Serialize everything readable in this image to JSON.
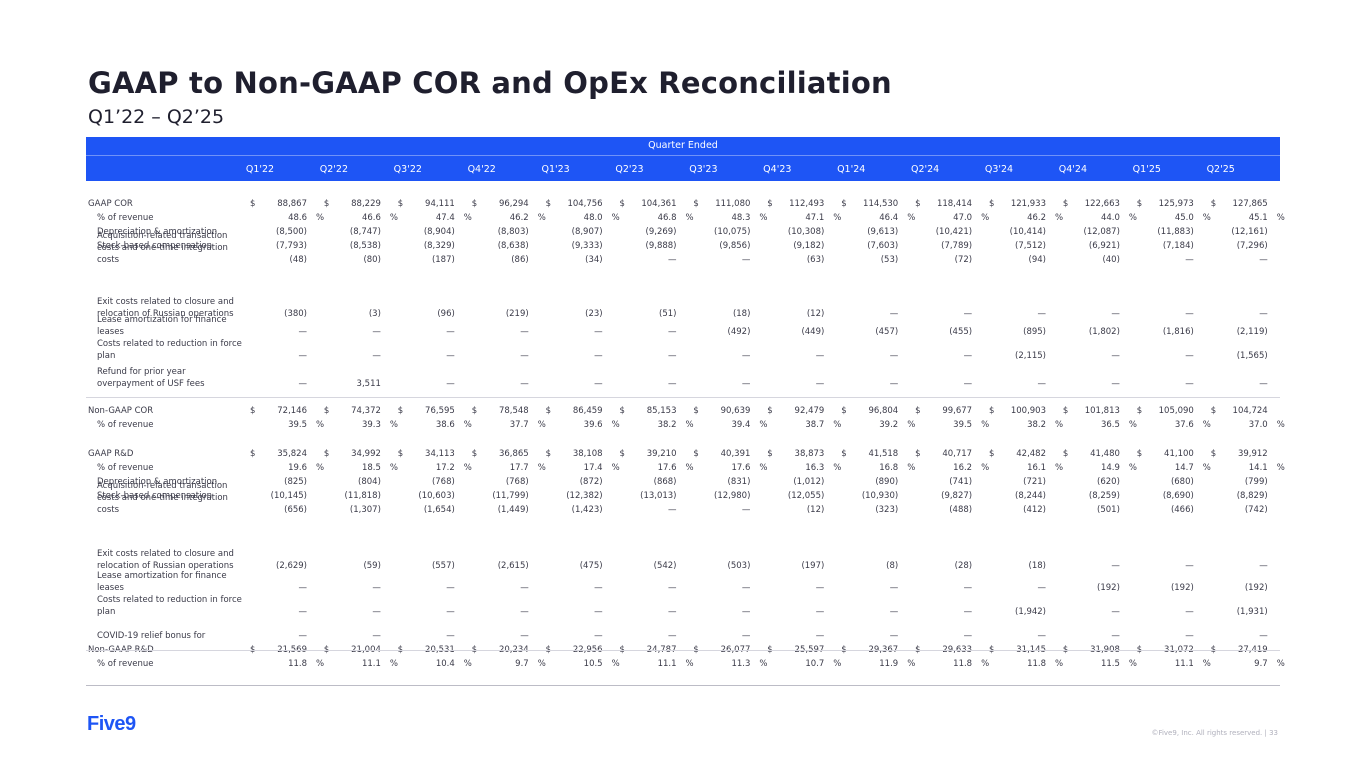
{
  "title": "GAAP to Non-GAAP COR and OpEx Reconciliation",
  "subtitle": "Q1’22 – Q2’25",
  "header_group": "Quarter Ended",
  "quarters": [
    "Q1'22",
    "Q2'22",
    "Q3'22",
    "Q4'22",
    "Q1'23",
    "Q2'23",
    "Q3'23",
    "Q4'23",
    "Q1'24",
    "Q2'24",
    "Q3'24",
    "Q4'24",
    "Q1'25",
    "Q2'25"
  ],
  "rows": [
    {
      "label": [
        "GAAP COR"
      ],
      "dollar": true,
      "values": [
        "88,867",
        "88,229",
        "94,111",
        "96,294",
        "104,756",
        "104,361",
        "111,080",
        "112,493",
        "114,530",
        "118,414",
        "121,933",
        "122,663",
        "125,973",
        "127,865"
      ]
    },
    {
      "label": [
        "% of revenue"
      ],
      "pct": true,
      "values": [
        "48.6",
        "46.6",
        "47.4",
        "46.2",
        "48.0",
        "46.8",
        "48.3",
        "47.1",
        "46.4",
        "47.0",
        "46.2",
        "44.0",
        "45.0",
        "45.1"
      ]
    },
    {
      "label": [
        "Depreciation & amortization"
      ],
      "values": [
        "(8,500)",
        "(8,747)",
        "(8,904)",
        "(8,803)",
        "(8,907)",
        "(9,269)",
        "(10,075)",
        "(10,308)",
        "(9,613)",
        "(10,421)",
        "(10,414)",
        "(12,087)",
        "(11,883)",
        "(12,161)"
      ]
    },
    {
      "label": [
        "Stock-based compensation"
      ],
      "values": [
        "(7,793)",
        "(8,538)",
        "(8,329)",
        "(8,638)",
        "(9,333)",
        "(9,888)",
        "(9,856)",
        "(9,182)",
        "(7,603)",
        "(7,789)",
        "(7,512)",
        "(6,921)",
        "(7,184)",
        "(7,296)"
      ]
    },
    {
      "label": [
        "Acquisition-related transaction",
        "costs and one-time integration",
        "costs"
      ],
      "values": [
        "(48)",
        "(80)",
        "(187)",
        "(86)",
        "(34)",
        "—",
        "—",
        "(63)",
        "(53)",
        "(72)",
        "(94)",
        "(40)",
        "—",
        "—"
      ]
    },
    {
      "label": [
        "Exit costs related to closure and",
        "relocation of Russian operations"
      ],
      "values": [
        "(380)",
        "(3)",
        "(96)",
        "(219)",
        "(23)",
        "(51)",
        "(18)",
        "(12)",
        "—",
        "—",
        "—",
        "—",
        "—",
        "—"
      ]
    },
    {
      "label": [
        "Lease amortization for finance",
        "leases"
      ],
      "values": [
        "—",
        "—",
        "—",
        "—",
        "—",
        "—",
        "(492)",
        "(449)",
        "(457)",
        "(455)",
        "(895)",
        "(1,802)",
        "(1,816)",
        "(2,119)"
      ]
    },
    {
      "label": [
        "Costs related to reduction in force",
        "plan"
      ],
      "values": [
        "—",
        "—",
        "—",
        "—",
        "—",
        "—",
        "—",
        "—",
        "—",
        "—",
        "(2,115)",
        "—",
        "—",
        "(1,565)"
      ]
    },
    {
      "label": [
        "Refund for prior year",
        "overpayment of USF fees"
      ],
      "values": [
        "—",
        "3,511",
        "—",
        "—",
        "—",
        "—",
        "—",
        "—",
        "—",
        "—",
        "—",
        "—",
        "—",
        "—"
      ]
    },
    {
      "label": [
        "Non-GAAP COR"
      ],
      "dollar": true,
      "values": [
        "72,146",
        "74,372",
        "76,595",
        "78,548",
        "86,459",
        "85,153",
        "90,639",
        "92,479",
        "96,804",
        "99,677",
        "100,903",
        "101,813",
        "105,090",
        "104,724"
      ]
    },
    {
      "label": [
        "% of revenue"
      ],
      "pct": true,
      "values": [
        "39.5",
        "39.3",
        "38.6",
        "37.7",
        "39.6",
        "38.2",
        "39.4",
        "38.7",
        "39.2",
        "39.5",
        "38.2",
        "36.5",
        "37.6",
        "37.0"
      ]
    },
    {
      "label": [
        "GAAP R&D"
      ],
      "dollar": true,
      "values": [
        "35,824",
        "34,992",
        "34,113",
        "36,865",
        "38,108",
        "39,210",
        "40,391",
        "38,873",
        "41,518",
        "40,717",
        "42,482",
        "41,480",
        "41,100",
        "39,912"
      ]
    },
    {
      "label": [
        "% of revenue"
      ],
      "pct": true,
      "values": [
        "19.6",
        "18.5",
        "17.2",
        "17.7",
        "17.4",
        "17.6",
        "17.6",
        "16.3",
        "16.8",
        "16.2",
        "16.1",
        "14.9",
        "14.7",
        "14.1"
      ]
    },
    {
      "label": [
        "Depreciation & amortization"
      ],
      "values": [
        "(825)",
        "(804)",
        "(768)",
        "(768)",
        "(872)",
        "(868)",
        "(831)",
        "(1,012)",
        "(890)",
        "(741)",
        "(721)",
        "(620)",
        "(680)",
        "(799)"
      ]
    },
    {
      "label": [
        "Stock-based compensation"
      ],
      "values": [
        "(10,145)",
        "(11,818)",
        "(10,603)",
        "(11,799)",
        "(12,382)",
        "(13,013)",
        "(12,980)",
        "(12,055)",
        "(10,930)",
        "(9,827)",
        "(8,244)",
        "(8,259)",
        "(8,690)",
        "(8,829)"
      ]
    },
    {
      "label": [
        "Acquisition-related transaction",
        "costs and one-time integration",
        "costs"
      ],
      "values": [
        "(656)",
        "(1,307)",
        "(1,654)",
        "(1,449)",
        "(1,423)",
        "—",
        "—",
        "(12)",
        "(323)",
        "(488)",
        "(412)",
        "(501)",
        "(466)",
        "(742)"
      ]
    },
    {
      "label": [
        "Exit costs related to closure and",
        "relocation of Russian operations"
      ],
      "values": [
        "(2,629)",
        "(59)",
        "(557)",
        "(2,615)",
        "(475)",
        "(542)",
        "(503)",
        "(197)",
        "(8)",
        "(28)",
        "(18)",
        "—",
        "—",
        "—"
      ]
    },
    {
      "label": [
        "Lease amortization for finance",
        "leases"
      ],
      "values": [
        "—",
        "—",
        "—",
        "—",
        "—",
        "—",
        "—",
        "—",
        "—",
        "—",
        "—",
        "(192)",
        "(192)",
        "(192)"
      ]
    },
    {
      "label": [
        "Costs related to reduction in force",
        "plan"
      ],
      "values": [
        "—",
        "—",
        "—",
        "—",
        "—",
        "—",
        "—",
        "—",
        "—",
        "—",
        "(1,942)",
        "—",
        "—",
        "(1,931)"
      ]
    },
    {
      "label": [
        "COVID-19 relief bonus for"
      ],
      "values": [
        "—",
        "—",
        "—",
        "—",
        "—",
        "—",
        "—",
        "—",
        "—",
        "—",
        "—",
        "—",
        "—",
        "—"
      ]
    },
    {
      "label": [
        "Non-GAAP R&D"
      ],
      "dollar": true,
      "values": [
        "21,569",
        "21,004",
        "20,531",
        "20,234",
        "22,956",
        "24,787",
        "26,077",
        "25,597",
        "29,367",
        "29,633",
        "31,145",
        "31,908",
        "31,072",
        "27,419"
      ]
    },
    {
      "label": [
        "% of revenue"
      ],
      "pct": true,
      "values": [
        "11.8",
        "11.1",
        "10.4",
        "9.7",
        "10.5",
        "11.1",
        "11.3",
        "10.7",
        "11.9",
        "11.8",
        "11.8",
        "11.5",
        "11.1",
        "9.7"
      ]
    }
  ],
  "dollar_sign": "$",
  "percent_sign": "%",
  "logo_text": "Five9",
  "copyright": "©Five9, Inc. All rights reserved. | 33",
  "colors": {
    "brand_blue": "#1e55f5",
    "text": "#3a3a48"
  }
}
